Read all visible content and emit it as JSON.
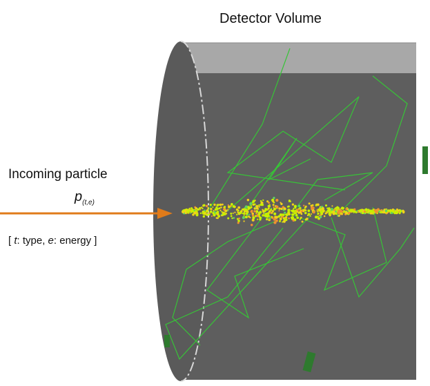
{
  "title": "Detector Volume",
  "particle": {
    "label": "Incoming particle",
    "symbol": "p",
    "subscript": "(t,e)",
    "legend": [
      "[ ",
      "t",
      ": type, ",
      "e",
      ": energy ]"
    ]
  }
}
